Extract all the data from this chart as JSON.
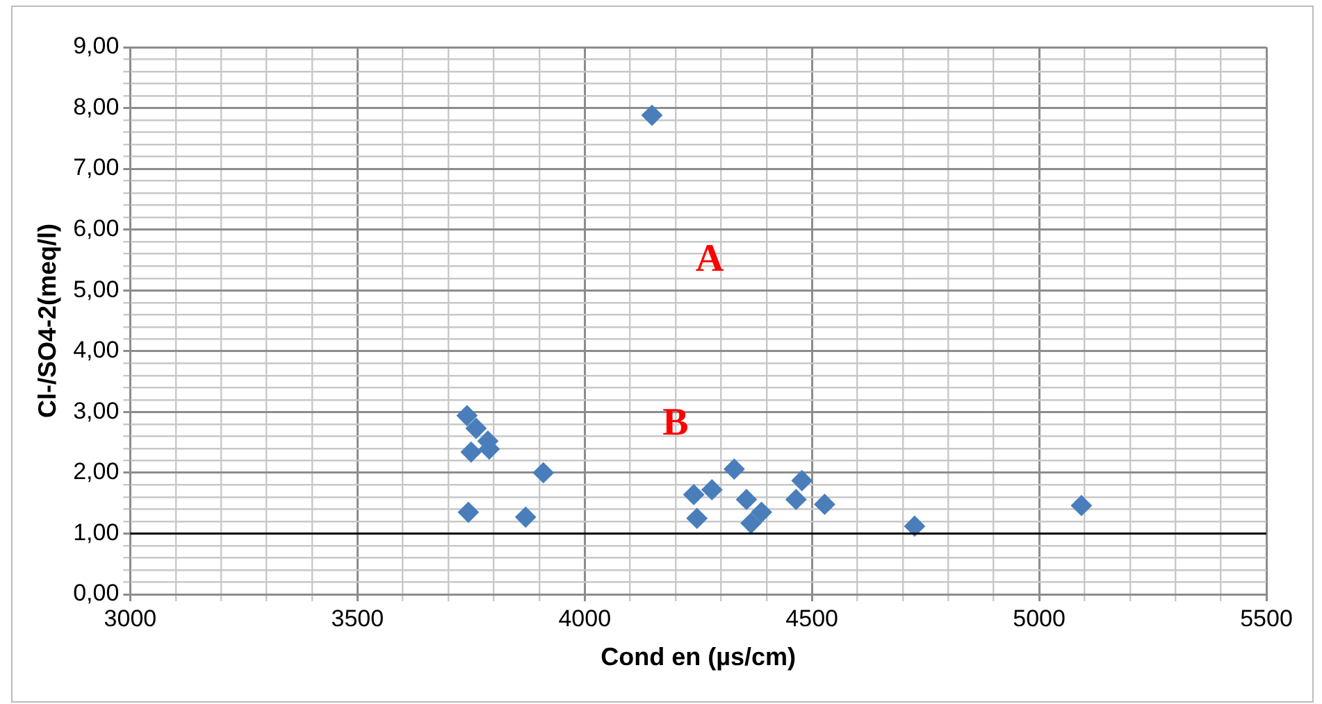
{
  "chart_data": {
    "type": "scatter",
    "xlabel": "Cond en (µs/cm)",
    "ylabel": "Cl-/SO4-2(meq/l)",
    "series": [
      {
        "color": "#4a7ebb",
        "x": [
          3741,
          3761,
          3787,
          3750,
          3790,
          3909,
          3744,
          3870,
          4240,
          4280,
          4329,
          4247,
          4356,
          4389,
          4366,
          4478,
          4465,
          4528,
          4726,
          5093,
          4148
        ],
        "values": [
          2.94,
          2.73,
          2.52,
          2.34,
          2.39,
          2.0,
          1.35,
          1.27,
          1.64,
          1.72,
          2.06,
          1.25,
          1.56,
          1.35,
          1.17,
          1.87,
          1.56,
          1.48,
          1.12,
          1.46,
          7.88
        ]
      }
    ],
    "marker": "diamond",
    "grid": true,
    "legend": false,
    "xlim": [
      3000,
      5500
    ],
    "xticks": [
      3000,
      {
        "value": 3100,
        "label": null
      },
      {
        "value": 3200,
        "label": null
      },
      {
        "value": 3300,
        "label": null
      },
      {
        "value": 3400,
        "label": null
      },
      3500,
      {
        "value": 3600,
        "label": null
      },
      {
        "value": 3700,
        "label": null
      },
      {
        "value": 3800,
        "label": null
      },
      {
        "value": 3900,
        "label": null
      },
      4000,
      {
        "value": 4100,
        "label": null
      },
      {
        "value": 4200,
        "label": null
      },
      {
        "value": 4300,
        "label": null
      },
      {
        "value": 4400,
        "label": null
      },
      4500,
      {
        "value": 4600,
        "label": null
      },
      {
        "value": 4700,
        "label": null
      },
      {
        "value": 4800,
        "label": null
      },
      {
        "value": 4900,
        "label": null
      },
      5000,
      {
        "value": 5100,
        "label": null
      },
      {
        "value": 5200,
        "label": null
      },
      {
        "value": 5300,
        "label": null
      },
      {
        "value": 5400,
        "label": null
      },
      5500
    ],
    "ylim": [
      0,
      9
    ],
    "yticks": [
      {
        "value": 0,
        "label": "0,00"
      },
      {
        "value": 0.2,
        "label": null
      },
      {
        "value": 0.4,
        "label": null
      },
      {
        "value": 0.6,
        "label": null
      },
      {
        "value": 0.8,
        "label": null
      },
      {
        "value": 1,
        "label": "1,00"
      },
      {
        "value": 1.2,
        "label": null
      },
      {
        "value": 1.4,
        "label": null
      },
      {
        "value": 1.6,
        "label": null
      },
      {
        "value": 1.8,
        "label": null
      },
      {
        "value": 2,
        "label": "2,00"
      },
      {
        "value": 2.2,
        "label": null
      },
      {
        "value": 2.4,
        "label": null
      },
      {
        "value": 2.6,
        "label": null
      },
      {
        "value": 2.8,
        "label": null
      },
      {
        "value": 3,
        "label": "3,00"
      },
      {
        "value": 3.2,
        "label": null
      },
      {
        "value": 3.4,
        "label": null
      },
      {
        "value": 3.6,
        "label": null
      },
      {
        "value": 3.8,
        "label": null
      },
      {
        "value": 4,
        "label": "4,00"
      },
      {
        "value": 4.2,
        "label": null
      },
      {
        "value": 4.4,
        "label": null
      },
      {
        "value": 4.6,
        "label": null
      },
      {
        "value": 4.8,
        "label": null
      },
      {
        "value": 5,
        "label": "5,00"
      },
      {
        "value": 5.2,
        "label": null
      },
      {
        "value": 5.4,
        "label": null
      },
      {
        "value": 5.6,
        "label": null
      },
      {
        "value": 5.8,
        "label": null
      },
      {
        "value": 6,
        "label": "6,00"
      },
      {
        "value": 6.2,
        "label": null
      },
      {
        "value": 6.4,
        "label": null
      },
      {
        "value": 6.6,
        "label": null
      },
      {
        "value": 6.8,
        "label": null
      },
      {
        "value": 7,
        "label": "7,00"
      },
      {
        "value": 7.2,
        "label": null
      },
      {
        "value": 7.4,
        "label": null
      },
      {
        "value": 7.6,
        "label": null
      },
      {
        "value": 7.8,
        "label": null
      },
      {
        "value": 8,
        "label": "8,00"
      },
      {
        "value": 8.2,
        "label": null
      },
      {
        "value": 8.4,
        "label": null
      },
      {
        "value": 8.6,
        "label": null
      },
      {
        "value": 8.8,
        "label": null
      },
      {
        "value": 9,
        "label": "9,00"
      }
    ],
    "ref_lines": [
      {
        "axis": "y",
        "value": 1,
        "color": "#000000"
      }
    ],
    "annotations": [
      "A",
      "B"
    ]
  }
}
